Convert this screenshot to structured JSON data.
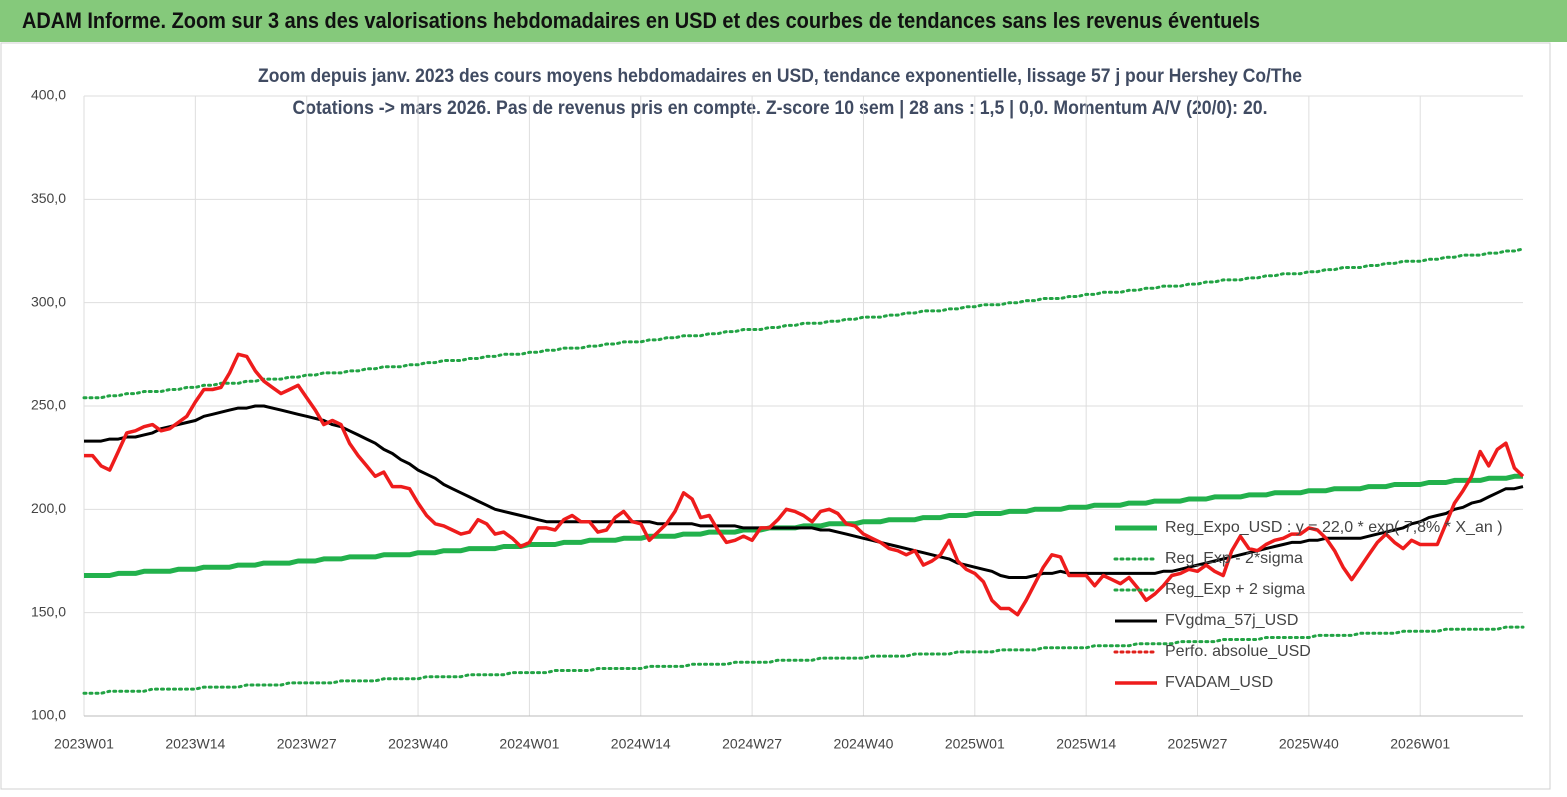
{
  "header": "ADAM Informe. Zoom sur 3 ans des valorisations hebdomadaires en USD et des courbes de tendances sans les revenus éventuels",
  "chart_data": {
    "type": "line",
    "title": "Zoom depuis janv. 2023 des cours moyens hebdomadaires en USD, tendance exponentielle, lissage 57 j pour Hershey Co/The",
    "subtitle": "Cotations -> mars 2026. Pas de revenus pris en compte. Z-score 10 sem | 28 ans : 1,5 | 0,0. Momentum A/V (20/0): 20.",
    "ylim": [
      100,
      400
    ],
    "yticks": [
      {
        "value": 100,
        "label": "100,0"
      },
      {
        "value": 150,
        "label": "150,0"
      },
      {
        "value": 200,
        "label": "200,0"
      },
      {
        "value": 250,
        "label": "250,0"
      },
      {
        "value": 300,
        "label": "300,0"
      },
      {
        "value": 350,
        "label": "350,0"
      },
      {
        "value": 400,
        "label": "400,0"
      }
    ],
    "grid": true,
    "legend": "right",
    "categories": [
      "2023W01",
      null,
      null,
      null,
      null,
      null,
      null,
      null,
      null,
      null,
      null,
      null,
      null,
      "2023W14",
      null,
      null,
      null,
      null,
      null,
      null,
      null,
      null,
      null,
      null,
      null,
      null,
      "2023W27",
      null,
      null,
      null,
      null,
      null,
      null,
      null,
      null,
      null,
      null,
      null,
      null,
      "2023W40",
      null,
      null,
      null,
      null,
      null,
      null,
      null,
      null,
      null,
      null,
      null,
      null,
      "2024W01",
      null,
      null,
      null,
      null,
      null,
      null,
      null,
      null,
      null,
      null,
      null,
      null,
      "2024W14",
      null,
      null,
      null,
      null,
      null,
      null,
      null,
      null,
      null,
      null,
      null,
      null,
      "2024W27",
      null,
      null,
      null,
      null,
      null,
      null,
      null,
      null,
      null,
      null,
      null,
      null,
      "2024W40",
      null,
      null,
      null,
      null,
      null,
      null,
      null,
      null,
      null,
      null,
      null,
      null,
      "2025W01",
      null,
      null,
      null,
      null,
      null,
      null,
      null,
      null,
      null,
      null,
      null,
      null,
      "2025W14",
      null,
      null,
      null,
      null,
      null,
      null,
      null,
      null,
      null,
      null,
      null,
      null,
      "2025W27",
      null,
      null,
      null,
      null,
      null,
      null,
      null,
      null,
      null,
      null,
      null,
      null,
      "2025W40",
      null,
      null,
      null,
      null,
      null,
      null,
      null,
      null,
      null,
      null,
      null,
      null,
      "2026W01",
      null,
      null,
      null,
      null,
      null,
      null,
      null,
      null,
      null,
      null,
      null,
      null
    ],
    "series": [
      {
        "name": "Reg_Expo_USD : y = 22,0 * exp( 7,8% * X_an )",
        "color": "#22b14c",
        "style": "solid",
        "width": 5,
        "values": [
          168,
          168,
          168,
          168,
          169,
          169,
          169,
          170,
          170,
          170,
          170,
          171,
          171,
          171,
          172,
          172,
          172,
          172,
          173,
          173,
          173,
          174,
          174,
          174,
          174,
          175,
          175,
          175,
          176,
          176,
          176,
          177,
          177,
          177,
          177,
          178,
          178,
          178,
          178,
          179,
          179,
          179,
          180,
          180,
          180,
          181,
          181,
          181,
          181,
          182,
          182,
          182,
          183,
          183,
          183,
          183,
          184,
          184,
          184,
          185,
          185,
          185,
          185,
          186,
          186,
          186,
          187,
          187,
          187,
          187,
          188,
          188,
          188,
          189,
          189,
          189,
          189,
          190,
          190,
          190,
          191,
          191,
          191,
          191,
          192,
          192,
          192,
          193,
          193,
          193,
          193,
          194,
          194,
          194,
          195,
          195,
          195,
          195,
          196,
          196,
          196,
          197,
          197,
          197,
          198,
          198,
          198,
          198,
          199,
          199,
          199,
          200,
          200,
          200,
          200,
          201,
          201,
          201,
          202,
          202,
          202,
          202,
          203,
          203,
          203,
          204,
          204,
          204,
          204,
          205,
          205,
          205,
          206,
          206,
          206,
          206,
          207,
          207,
          207,
          208,
          208,
          208,
          208,
          209,
          209,
          209,
          210,
          210,
          210,
          210,
          211,
          211,
          211,
          212,
          212,
          212,
          212,
          213,
          213,
          213,
          214,
          214,
          214,
          214,
          215,
          215,
          215,
          216,
          216
        ]
      },
      {
        "name": "Reg_Exp - 2*sigma",
        "color": "#22a344",
        "style": "dotted",
        "width": 3,
        "values": [
          111,
          111,
          111,
          112,
          112,
          112,
          112,
          112,
          113,
          113,
          113,
          113,
          113,
          113,
          114,
          114,
          114,
          114,
          114,
          115,
          115,
          115,
          115,
          115,
          116,
          116,
          116,
          116,
          116,
          116,
          117,
          117,
          117,
          117,
          117,
          118,
          118,
          118,
          118,
          118,
          119,
          119,
          119,
          119,
          119,
          120,
          120,
          120,
          120,
          120,
          121,
          121,
          121,
          121,
          121,
          122,
          122,
          122,
          122,
          122,
          123,
          123,
          123,
          123,
          123,
          123,
          124,
          124,
          124,
          124,
          124,
          125,
          125,
          125,
          125,
          125,
          126,
          126,
          126,
          126,
          126,
          127,
          127,
          127,
          127,
          127,
          128,
          128,
          128,
          128,
          128,
          128,
          129,
          129,
          129,
          129,
          129,
          130,
          130,
          130,
          130,
          130,
          131,
          131,
          131,
          131,
          131,
          132,
          132,
          132,
          132,
          132,
          133,
          133,
          133,
          133,
          133,
          133,
          134,
          134,
          134,
          134,
          134,
          135,
          135,
          135,
          135,
          135,
          136,
          136,
          136,
          136,
          136,
          137,
          137,
          137,
          137,
          137,
          138,
          138,
          138,
          138,
          138,
          138,
          139,
          139,
          139,
          139,
          139,
          140,
          140,
          140,
          140,
          140,
          141,
          141,
          141,
          141,
          141,
          142,
          142,
          142,
          142,
          142,
          142,
          142,
          143,
          143,
          143
        ]
      },
      {
        "name": "Reg_Exp + 2 sigma",
        "color": "#22a344",
        "style": "dotted",
        "width": 3,
        "values": [
          254,
          254,
          254,
          255,
          255,
          256,
          256,
          257,
          257,
          257,
          258,
          258,
          259,
          259,
          260,
          260,
          261,
          261,
          261,
          262,
          262,
          263,
          263,
          263,
          264,
          264,
          265,
          265,
          266,
          266,
          266,
          267,
          267,
          268,
          268,
          269,
          269,
          269,
          270,
          270,
          271,
          271,
          272,
          272,
          272,
          273,
          273,
          274,
          274,
          275,
          275,
          275,
          276,
          276,
          277,
          277,
          278,
          278,
          278,
          279,
          279,
          280,
          280,
          281,
          281,
          281,
          282,
          282,
          283,
          283,
          284,
          284,
          284,
          285,
          285,
          286,
          286,
          287,
          287,
          287,
          288,
          288,
          289,
          289,
          290,
          290,
          290,
          291,
          291,
          292,
          292,
          293,
          293,
          293,
          294,
          294,
          295,
          295,
          296,
          296,
          296,
          297,
          297,
          298,
          298,
          299,
          299,
          299,
          300,
          300,
          301,
          301,
          302,
          302,
          302,
          303,
          303,
          304,
          304,
          305,
          305,
          305,
          306,
          306,
          307,
          307,
          308,
          308,
          308,
          309,
          309,
          310,
          310,
          311,
          311,
          311,
          312,
          312,
          313,
          313,
          314,
          314,
          314,
          315,
          315,
          316,
          316,
          317,
          317,
          317,
          318,
          318,
          319,
          319,
          320,
          320,
          320,
          321,
          321,
          322,
          322,
          323,
          323,
          323,
          324,
          324,
          325,
          325,
          326
        ]
      },
      {
        "name": "FVgdma_57j_USD",
        "color": "#000000",
        "style": "solid",
        "width": 3,
        "values": [
          233,
          233,
          233,
          234,
          234,
          235,
          235,
          236,
          237,
          239,
          240,
          241,
          242,
          243,
          245,
          246,
          247,
          248,
          249,
          249,
          250,
          250,
          249,
          248,
          247,
          246,
          245,
          244,
          243,
          241,
          240,
          238,
          236,
          234,
          232,
          229,
          227,
          224,
          222,
          219,
          217,
          215,
          212,
          210,
          208,
          206,
          204,
          202,
          200,
          199,
          198,
          197,
          196,
          195,
          194,
          194,
          194,
          194,
          194,
          194,
          194,
          194,
          194,
          194,
          194,
          194,
          194,
          193,
          193,
          193,
          193,
          193,
          192,
          192,
          192,
          192,
          192,
          191,
          191,
          191,
          191,
          191,
          191,
          191,
          191,
          191,
          190,
          190,
          189,
          188,
          187,
          186,
          185,
          184,
          183,
          182,
          181,
          180,
          179,
          178,
          177,
          176,
          174,
          173,
          172,
          171,
          170,
          168,
          167,
          167,
          167,
          168,
          169,
          169,
          170,
          169,
          169,
          169,
          169,
          169,
          169,
          169,
          169,
          169,
          169,
          169,
          170,
          170,
          171,
          172,
          173,
          174,
          175,
          176,
          177,
          178,
          179,
          180,
          181,
          182,
          183,
          184,
          184,
          185,
          185,
          186,
          186,
          186,
          186,
          186,
          187,
          188,
          189,
          190,
          191,
          193,
          194,
          196,
          197,
          198,
          200,
          201,
          203,
          204,
          206,
          208,
          210,
          210,
          211
        ]
      },
      {
        "name": "Perfo. absolue_USD",
        "color": "#e0201b",
        "style": "dotted",
        "width": 3,
        "values": [
          null,
          null,
          null,
          null,
          null,
          null,
          null,
          null,
          null,
          null,
          null,
          null,
          null,
          null,
          null,
          null,
          null,
          null,
          null,
          null,
          null,
          null,
          null,
          null,
          null,
          null,
          null,
          null,
          null,
          null,
          null,
          null,
          null,
          null,
          null,
          null,
          null,
          null,
          null,
          null,
          null,
          null,
          null,
          null,
          null,
          null,
          null,
          null,
          null,
          null,
          null,
          null,
          null,
          null,
          null,
          null,
          null,
          null,
          null,
          null,
          null,
          null,
          null,
          null,
          null,
          null,
          null,
          null,
          null,
          null,
          null,
          null,
          null,
          null,
          null,
          null,
          null,
          null,
          null,
          null,
          null,
          null,
          null,
          null,
          null,
          null,
          null,
          null,
          null,
          null,
          null,
          null,
          null,
          null,
          null,
          null,
          null,
          null,
          null,
          null,
          null,
          null,
          null,
          null,
          null,
          null,
          null,
          null,
          null,
          null,
          null,
          null,
          null,
          null,
          null,
          null,
          null,
          null,
          null,
          null,
          null,
          null,
          null,
          null,
          null,
          null,
          null,
          null,
          null,
          null,
          null,
          null,
          null,
          null,
          null,
          null,
          null,
          null,
          null,
          null,
          null,
          null,
          null,
          null,
          null,
          null,
          null,
          null,
          null,
          null,
          null,
          null,
          null,
          null,
          null,
          null,
          null,
          null,
          null,
          null,
          null,
          null,
          null,
          null,
          null,
          null,
          null,
          null,
          null
        ]
      },
      {
        "name": "FVADAM_USD",
        "color": "#ee1c1c",
        "style": "solid",
        "width": 3.5,
        "values": [
          226,
          226,
          221,
          219,
          228,
          237,
          238,
          240,
          241,
          238,
          239,
          242,
          245,
          252,
          258,
          258,
          259,
          266,
          275,
          274,
          267,
          262,
          259,
          256,
          258,
          260,
          254,
          248,
          241,
          243,
          241,
          232,
          226,
          221,
          216,
          218,
          211,
          211,
          210,
          203,
          197,
          193,
          192,
          190,
          188,
          189,
          195,
          193,
          188,
          189,
          186,
          182,
          184,
          191,
          191,
          190,
          195,
          197,
          194,
          194,
          189,
          190,
          196,
          199,
          194,
          193,
          185,
          189,
          193,
          199,
          208,
          205,
          196,
          197,
          190,
          184,
          185,
          187,
          185,
          191,
          191,
          195,
          200,
          199,
          197,
          194,
          199,
          200,
          198,
          193,
          192,
          188,
          186,
          184,
          181,
          180,
          178,
          180,
          173,
          175,
          178,
          185,
          175,
          171,
          169,
          165,
          156,
          152,
          152,
          149,
          156,
          164,
          172,
          178,
          177,
          168,
          168,
          168,
          163,
          168,
          166,
          164,
          167,
          162,
          156,
          159,
          163,
          168,
          169,
          171,
          170,
          173,
          170,
          168,
          180,
          187,
          181,
          180,
          183,
          185,
          186,
          188,
          188,
          191,
          190,
          186,
          180,
          172,
          166,
          172,
          178,
          184,
          188,
          184,
          181,
          185,
          183,
          183,
          183,
          193,
          203,
          209,
          216,
          228,
          221,
          229,
          232,
          220,
          216
        ]
      }
    ]
  }
}
